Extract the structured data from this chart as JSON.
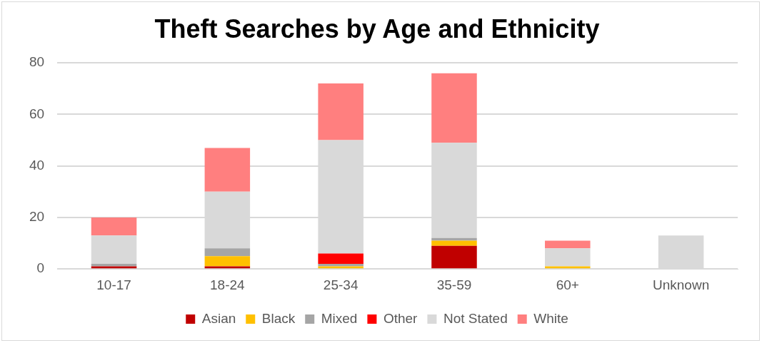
{
  "chart_data": {
    "type": "bar",
    "title": "Theft Searches by Age and Ethnicity",
    "stacked": true,
    "categories": [
      "10-17",
      "18-24",
      "25-34",
      "35-59",
      "60+",
      "Unknown"
    ],
    "series": [
      {
        "name": "Asian",
        "color": "#c00000",
        "values": [
          1,
          1,
          0,
          9,
          0,
          0
        ]
      },
      {
        "name": "Black",
        "color": "#ffc000",
        "values": [
          0,
          4,
          1,
          2,
          1,
          0
        ]
      },
      {
        "name": "Mixed",
        "color": "#a5a5a5",
        "values": [
          1,
          3,
          1,
          1,
          0,
          0
        ]
      },
      {
        "name": "Other",
        "color": "#ff0000",
        "values": [
          0,
          0,
          4,
          0,
          0,
          0
        ]
      },
      {
        "name": "Not Stated",
        "color": "#d9d9d9",
        "values": [
          11,
          22,
          44,
          37,
          7,
          13
        ]
      },
      {
        "name": "White",
        "color": "#ff7f7f",
        "values": [
          7,
          17,
          22,
          27,
          3,
          0
        ]
      }
    ],
    "ylim": [
      0,
      80
    ],
    "yticks": [
      0,
      20,
      40,
      60,
      80
    ],
    "grid": "y",
    "legend": "bottom"
  }
}
